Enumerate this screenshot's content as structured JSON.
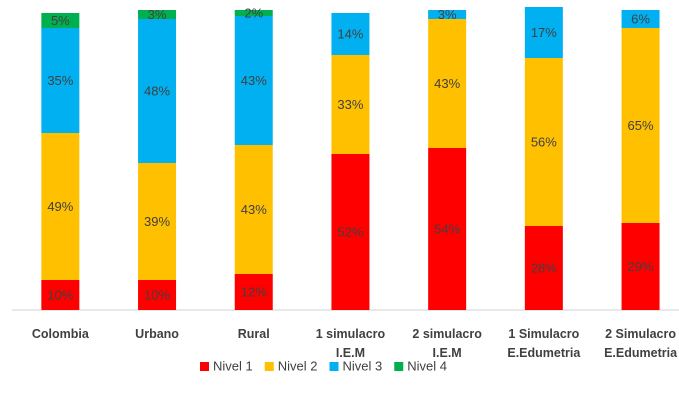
{
  "chart_data": {
    "type": "stacked_bar",
    "categories": [
      "Colombia",
      "Urbano",
      "Rural",
      "1 simulacro I.E.M",
      "2 simulacro I.E.M",
      "1 Simulacro E.Edumetria",
      "2 Simulacro E.Edumetria"
    ],
    "series": [
      {
        "name": "Nivel 1",
        "color": "#ff0000",
        "values": [
          10,
          10,
          12,
          52,
          54,
          28,
          29
        ],
        "value_labels": [
          "10%",
          "10%",
          "12%",
          "52%",
          "54%",
          "28%",
          "29%"
        ]
      },
      {
        "name": "Nivel 2",
        "color": "#ffc000",
        "values": [
          49,
          39,
          43,
          33,
          43,
          56,
          65
        ],
        "value_labels": [
          "49%",
          "39%",
          "43%",
          "33%",
          "43%",
          "56%",
          "65%"
        ]
      },
      {
        "name": "Nivel 3",
        "color": "#00b0f0",
        "values": [
          35,
          48,
          43,
          14,
          3,
          17,
          6
        ],
        "value_labels": [
          "35%",
          "48%",
          "43%",
          "14%",
          "3%",
          "17%",
          "6%"
        ]
      },
      {
        "name": "Nivel 4",
        "color": "#00b050",
        "values": [
          5,
          3,
          2,
          null,
          null,
          null,
          null
        ],
        "value_labels": [
          "5%",
          "3%",
          "2%",
          null,
          null,
          null,
          null
        ]
      }
    ],
    "ylim": [
      0,
      100
    ],
    "legend": "bottom"
  }
}
